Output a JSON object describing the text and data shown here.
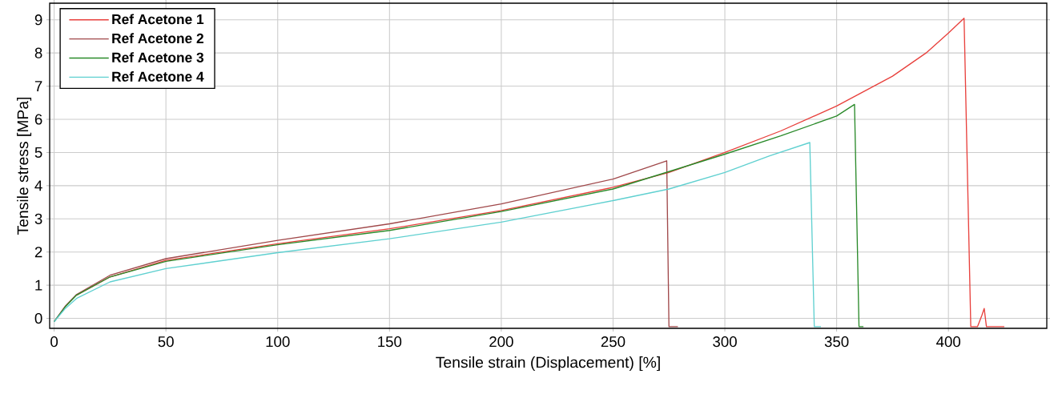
{
  "chart_data": {
    "type": "line",
    "xlabel": "Tensile strain (Displacement) [%]",
    "ylabel": "Tensile stress [MPa]",
    "xlim": [
      -2,
      444
    ],
    "ylim": [
      -0.3,
      9.5
    ],
    "xticks": [
      0,
      50,
      100,
      150,
      200,
      250,
      300,
      350,
      400
    ],
    "yticks": [
      0,
      1,
      2,
      3,
      4,
      5,
      6,
      7,
      8,
      9
    ],
    "grid": true,
    "legend": "top left",
    "marker": "none",
    "line_style": "solid",
    "series": [
      {
        "name": "Ref Acetone 1",
        "color": "#e8403c",
        "x": [
          10,
          25,
          50,
          100,
          150,
          200,
          250,
          275,
          300,
          325,
          350,
          375,
          390,
          400,
          407,
          410,
          413,
          415,
          416,
          417,
          418,
          425
        ],
        "values": [
          0.7,
          1.25,
          1.75,
          2.25,
          2.7,
          3.25,
          3.95,
          4.4,
          5.0,
          5.65,
          6.4,
          7.3,
          8.0,
          8.6,
          9.05,
          -0.25,
          -0.25,
          0.1,
          0.3,
          -0.25,
          -0.25,
          -0.25
        ]
      },
      {
        "name": "Ref Acetone 2",
        "color": "#a0484a",
        "x": [
          0,
          5,
          10,
          25,
          50,
          100,
          150,
          200,
          250,
          274,
          275,
          279
        ],
        "values": [
          -0.1,
          0.37,
          0.72,
          1.3,
          1.8,
          2.35,
          2.85,
          3.45,
          4.2,
          4.75,
          -0.25,
          -0.25
        ]
      },
      {
        "name": "Ref Acetone 3",
        "color": "#2a8a2a",
        "x": [
          0,
          5,
          10,
          25,
          50,
          100,
          150,
          200,
          250,
          300,
          325,
          350,
          358,
          360,
          362
        ],
        "values": [
          -0.1,
          0.35,
          0.7,
          1.25,
          1.72,
          2.22,
          2.65,
          3.22,
          3.9,
          4.95,
          5.5,
          6.1,
          6.45,
          -0.25,
          -0.25
        ]
      },
      {
        "name": "Ref Acetone 4",
        "color": "#5fd0d0",
        "x": [
          0,
          5,
          10,
          25,
          50,
          100,
          150,
          200,
          250,
          275,
          300,
          320,
          338,
          340,
          343
        ],
        "values": [
          -0.1,
          0.3,
          0.6,
          1.1,
          1.5,
          1.98,
          2.4,
          2.9,
          3.55,
          3.9,
          4.4,
          4.9,
          5.3,
          -0.25,
          -0.25
        ]
      }
    ]
  }
}
